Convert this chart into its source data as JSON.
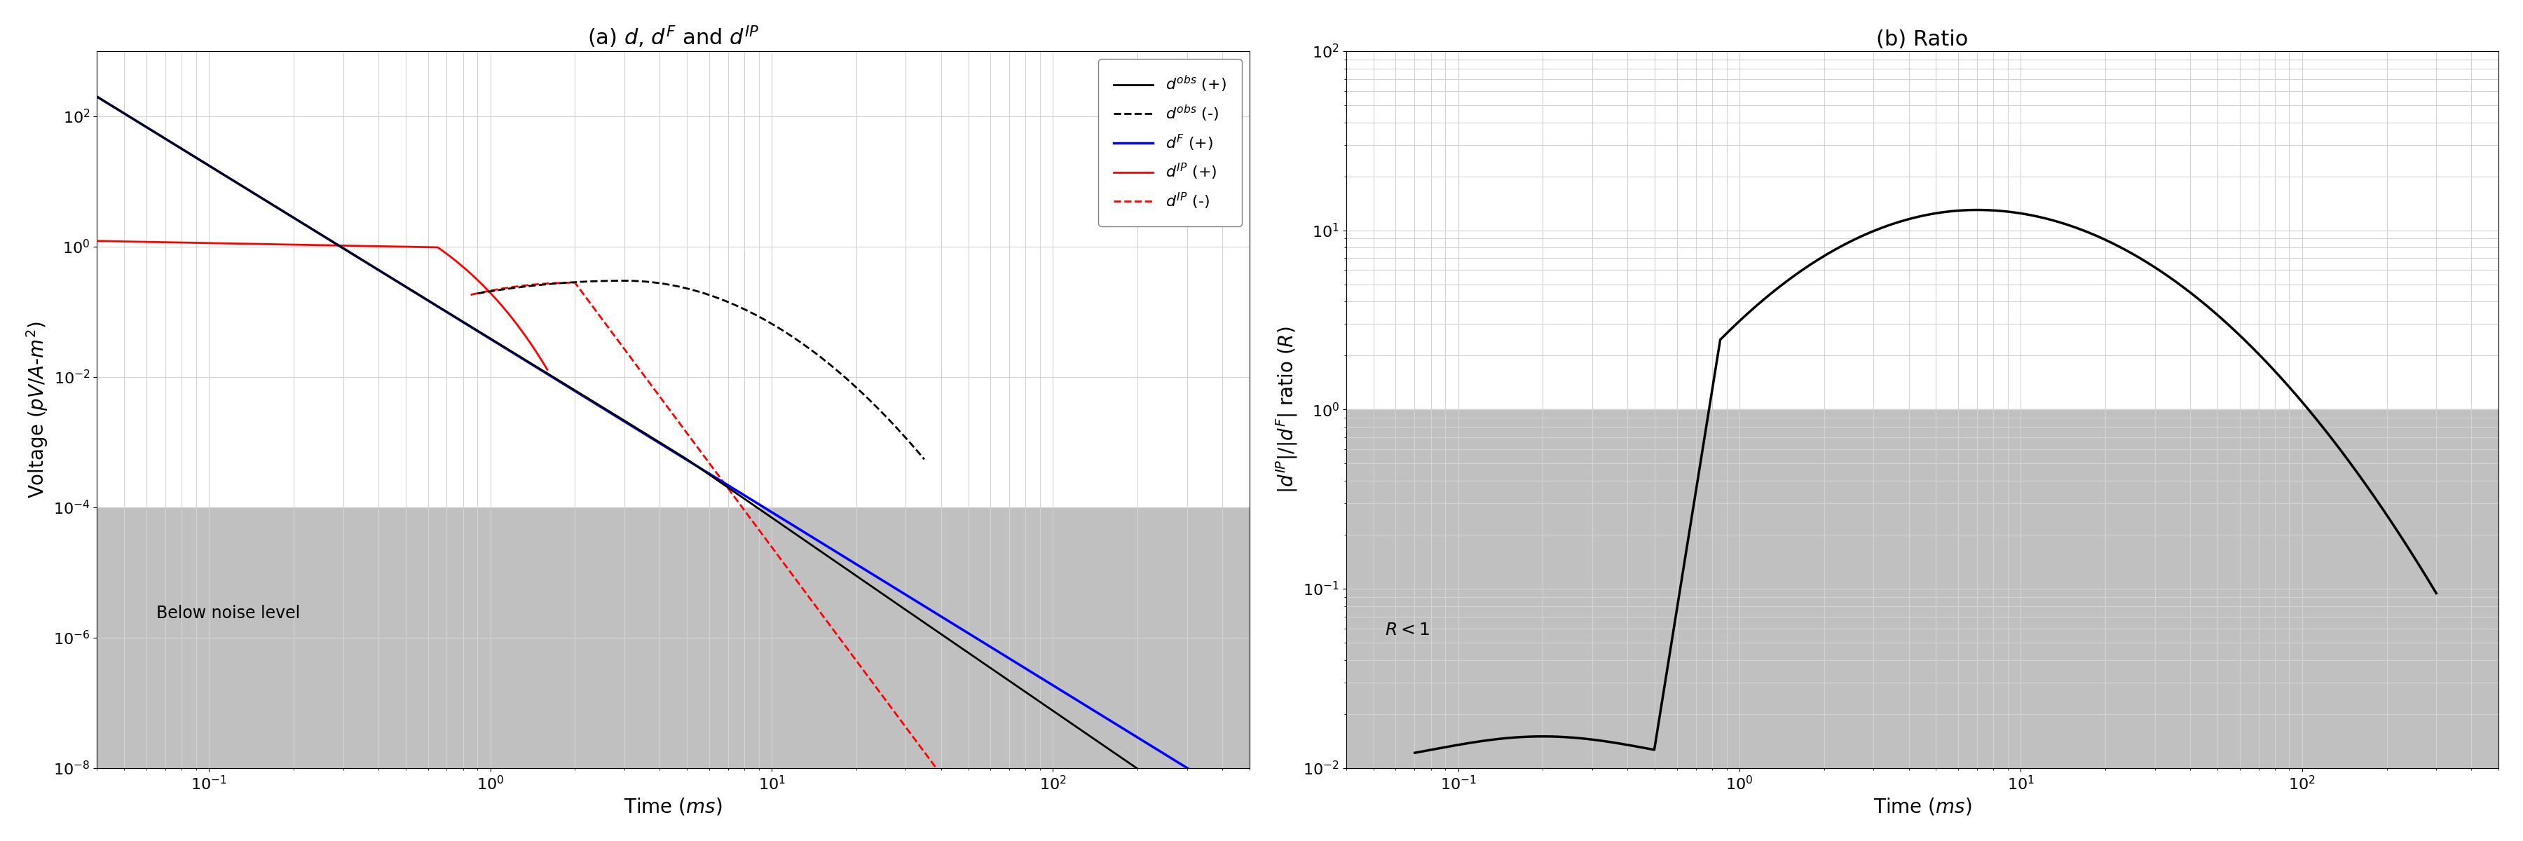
{
  "title_a": "(a) $d$, $d^{F}$ and $d^{IP}$",
  "title_b": "(b) Ratio",
  "xlabel": "Time ($ms$)",
  "ylabel_a": "Voltage ($pV/A$-$m^{2}$)",
  "ylabel_b": "$|d^{IP}|/|d^{F}|$ ratio ($R$)",
  "noise_level": 0.0001,
  "ratio_level": 1.0,
  "xlim_a": [
    0.04,
    500
  ],
  "ylim_a": [
    1e-08,
    1000.0
  ],
  "xlim_b": [
    0.04,
    500
  ],
  "ylim_b": [
    0.01,
    100.0
  ],
  "grey_color": "#c0c0c0",
  "annotation_a": "Below noise level",
  "annotation_b": "$R < 1$",
  "legend_order": [
    "$d^{obs}$ (+)",
    "$d^{obs}$ (-)",
    "$d^{F}$ (+)",
    "$d^{IP}$ (+)",
    "$d^{IP}$ (-)"
  ]
}
